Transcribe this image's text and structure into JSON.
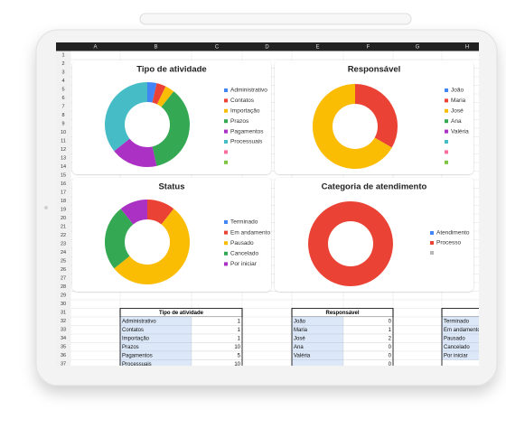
{
  "spreadsheet": {
    "columns": [
      "A",
      "B",
      "C",
      "D",
      "E",
      "F",
      "G",
      "H"
    ],
    "rows": [
      1,
      2,
      3,
      4,
      5,
      6,
      7,
      8,
      9,
      10,
      11,
      12,
      13,
      14,
      15,
      16,
      17,
      18,
      19,
      20,
      21,
      22,
      23,
      24,
      25,
      26,
      27,
      28,
      29,
      30,
      31,
      32,
      33,
      34,
      35,
      36,
      37
    ]
  },
  "chart_data": [
    {
      "type": "donut",
      "title": "Tipo de atividade",
      "categories": [
        "Administrativo",
        "Contatos",
        "Importação",
        "Prazos",
        "Pagamentos",
        "Processuais",
        null,
        null
      ],
      "values": [
        1,
        1,
        1,
        10,
        5,
        10,
        0,
        0
      ],
      "colors": [
        "#4285f4",
        "#ea4335",
        "#fbbc04",
        "#34a853",
        "#ab30c4",
        "#46bdc6",
        "#ff6d9d",
        "#7cc442"
      ]
    },
    {
      "type": "donut",
      "title": "Responsável",
      "categories": [
        "João",
        "Maria",
        "José",
        "Ana",
        "Valéria",
        null,
        null,
        null
      ],
      "values": [
        0,
        1,
        2,
        0,
        0,
        0,
        0,
        0
      ],
      "colors": [
        "#4285f4",
        "#ea4335",
        "#fbbc04",
        "#34a853",
        "#ab30c4",
        "#46bdc6",
        "#ff6d9d",
        "#7cc442"
      ]
    },
    {
      "type": "donut",
      "title": "Status",
      "categories": [
        "Terminado",
        "Em andamento",
        "Pausado",
        "Cancelado",
        "Por iniciar"
      ],
      "values": [
        0,
        3,
        15,
        7,
        3
      ],
      "colors": [
        "#4285f4",
        "#ea4335",
        "#fbbc04",
        "#34a853",
        "#ab30c4"
      ]
    },
    {
      "type": "donut",
      "title": "Categoria de atendimento",
      "categories": [
        "Atendimento",
        "Processo",
        null
      ],
      "values": [
        0,
        28,
        0
      ],
      "colors": [
        "#4285f4",
        "#ea4335",
        "#b7b7b7"
      ]
    }
  ],
  "tables": [
    {
      "title": "Tipo de atividade"
    },
    {
      "title": "Responsável"
    },
    {
      "title": "Status"
    }
  ]
}
